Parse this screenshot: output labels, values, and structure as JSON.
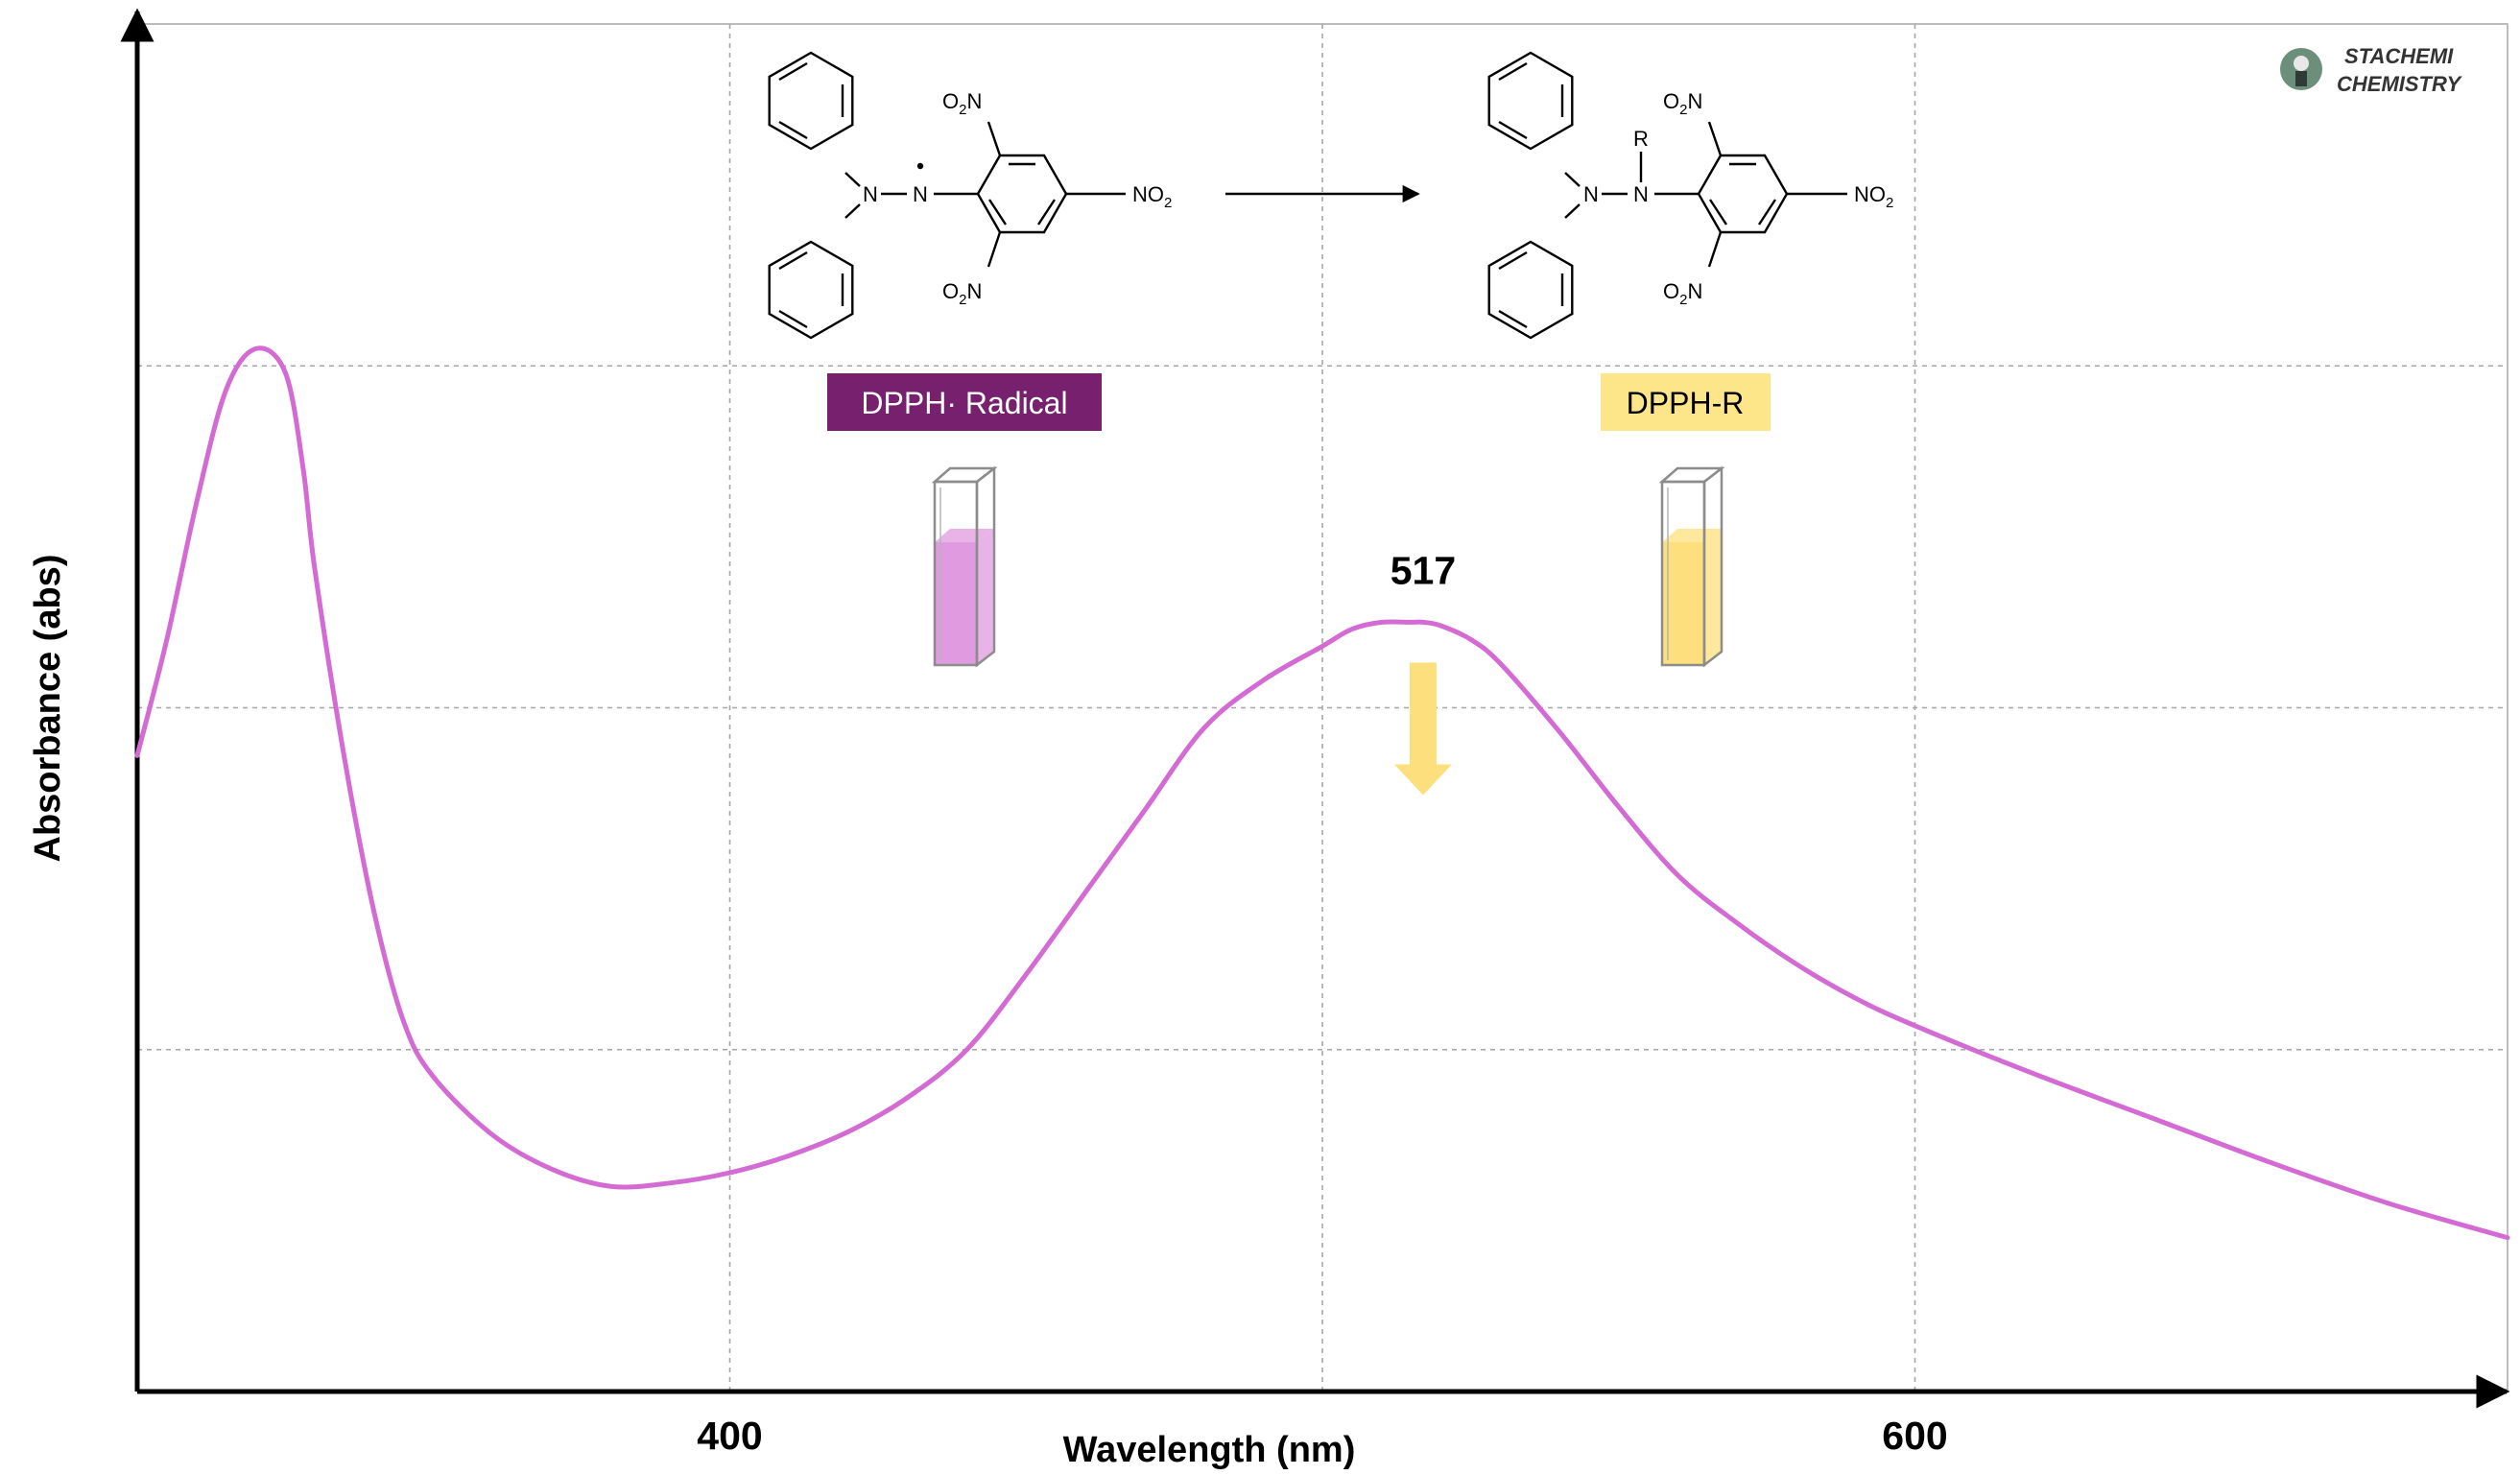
{
  "chart_data": {
    "type": "line",
    "title": "",
    "xlabel": "Wavelength (nm)",
    "ylabel": "Absorbance (abs)",
    "xlim": [
      300,
      700
    ],
    "ylim": [
      0,
      4
    ],
    "x_ticks": [
      400,
      600
    ],
    "x_tick_labels": [
      "400",
      "600"
    ],
    "y_gridlines": [
      1,
      2,
      3
    ],
    "grid": "dashed",
    "series": [
      {
        "color": "#d46ad4",
        "x": [
          300,
          305,
          310,
          315,
          320,
          325,
          328,
          330,
          335,
          340,
          345,
          350,
          360,
          370,
          380,
          390,
          400,
          410,
          420,
          430,
          440,
          450,
          460,
          470,
          480,
          490,
          500,
          505,
          510,
          515,
          517,
          520,
          525,
          530,
          540,
          550,
          560,
          570,
          580,
          590,
          600,
          620,
          640,
          660,
          680,
          700
        ],
        "y": [
          1.86,
          2.2,
          2.6,
          2.93,
          3.05,
          2.98,
          2.7,
          2.4,
          1.85,
          1.4,
          1.08,
          0.92,
          0.75,
          0.65,
          0.6,
          0.61,
          0.64,
          0.69,
          0.76,
          0.86,
          1.0,
          1.22,
          1.46,
          1.7,
          1.94,
          2.08,
          2.18,
          2.23,
          2.25,
          2.25,
          2.25,
          2.24,
          2.2,
          2.13,
          1.93,
          1.71,
          1.51,
          1.37,
          1.25,
          1.15,
          1.07,
          0.93,
          0.8,
          0.67,
          0.55,
          0.45
        ]
      }
    ],
    "annotations": [
      {
        "text": "517",
        "x": 517,
        "y": 2.25
      }
    ]
  },
  "reaction": {
    "reactant_label": "DPPH· Radical",
    "product_label": "DPPH-R",
    "reactant_color": "#77206e",
    "product_color": "#fde68a",
    "reactant_solution_color": "#e09be0",
    "product_solution_color": "#fde07d",
    "arrow_color": "#fde07d",
    "atoms": {
      "n": "N",
      "r": "R",
      "o2n_label": "O",
      "o2n_sub": "2",
      "o2n_tail": "N",
      "no2_label": "NO",
      "no2_sub": "2",
      "dash": "–"
    }
  },
  "logo": {
    "line1": "STACHEMI",
    "line2": "CHEMISTRY"
  }
}
